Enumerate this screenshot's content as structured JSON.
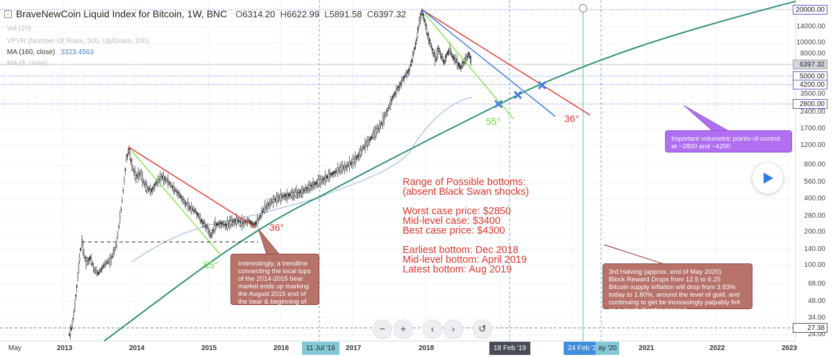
{
  "header": {
    "title": "BraveNewCoin Liquid Index for Bitcoin, 1W, BNC",
    "open_label": "O",
    "open": "6314.20",
    "high_label": "H",
    "high": "6622.99",
    "low_label": "L",
    "low": "5891.58",
    "close_label": "C",
    "close": "6397.32"
  },
  "indicators": {
    "vol": "Vol (10)",
    "vpvr": "VPVR (Number Of Rows, 500, Up/Down, 100)",
    "ma160": "MA (160, close)",
    "ma160_value": "3323.4563",
    "ma9": "MA (9, close)"
  },
  "annotations": {
    "range_text": "Range of Possible bottoms:\n(absent Black Swan shocks)\n\nWorst case price: $2850\nMid-level case: $3400\nBest case price: $4300\n\nEarliest bottom: Dec 2018\nMid-level bottom: April 2019\nLatest bottom: Aug 2019",
    "angle_55_a": "55°",
    "angle_36_a": "36°",
    "angle_55_b": "55°",
    "angle_36_b": "36°",
    "note_trendline": "Interestingly, a trendline connecting the local tops of the 2014-2015 bear market ends up marking the August 2015 end of the bear & beginning of the bull market",
    "note_volumetric": "Important volumetric points-of-control at ~2800 and ~4200",
    "note_halving": "3rd Halving (approx. end of May 2020)\nBlock Reward Drops from 12.5 to 6.25\nBitcoin supply inflation will drop from 3.83% today to 1.80%, around the level of gold, and continuing to get be increasingly palpably felt as a much \"harder money\""
  },
  "price_axis": {
    "labels": [
      "20000.00",
      "14000.00",
      "10000.00",
      "8000.00",
      "3500.00",
      "2400.00",
      "1700.00",
      "1200.00",
      "800.00",
      "560.00",
      "400.00",
      "280.00",
      "200.00",
      "140.00",
      "100.00",
      "68.00",
      "48.00",
      "34.00",
      "24.00"
    ],
    "boxed_labels": [
      "5000.00",
      "4200.00",
      "2800.00"
    ],
    "top_label": "20000.00",
    "current_price": "6397.32",
    "bottom_price": "27.38"
  },
  "time_axis": {
    "labels": [
      "May",
      "2013",
      "2014",
      "2015",
      "2016",
      "2017",
      "2018",
      "2021",
      "2022",
      "2023"
    ],
    "marker_a": "11 Jul '16",
    "marker_b": "18 Feb '19",
    "marker_c": "24 Feb '20",
    "marker_d_partial": "ay '20"
  },
  "controls": {
    "zoom_out": "−",
    "zoom_in": "+",
    "scroll_left": "‹",
    "scroll_right": "›",
    "reset": "↺"
  },
  "colors": {
    "up": "#2e2e2e",
    "down": "#3b3b3b",
    "red_trend": "#e53935",
    "green_trend": "#8ee25a",
    "blue_trend": "#3f7fe0",
    "curve": "#2f8f73",
    "ma": "#90b5e0",
    "hline": "#5b63c5",
    "vline": "#59b9c8"
  },
  "chart_data": {
    "type": "candlestick",
    "scale": "log",
    "timeframe": "1W",
    "symbol": "BraveNewCoin Liquid Index for Bitcoin",
    "last_bar": {
      "open": 6314.2,
      "high": 6622.99,
      "low": 5891.58,
      "close": 6397.32
    },
    "ma160_last": 3323.4563,
    "key_levels": [
      5000,
      4200,
      2800
    ],
    "ylim": [
      24,
      20000
    ]
  }
}
